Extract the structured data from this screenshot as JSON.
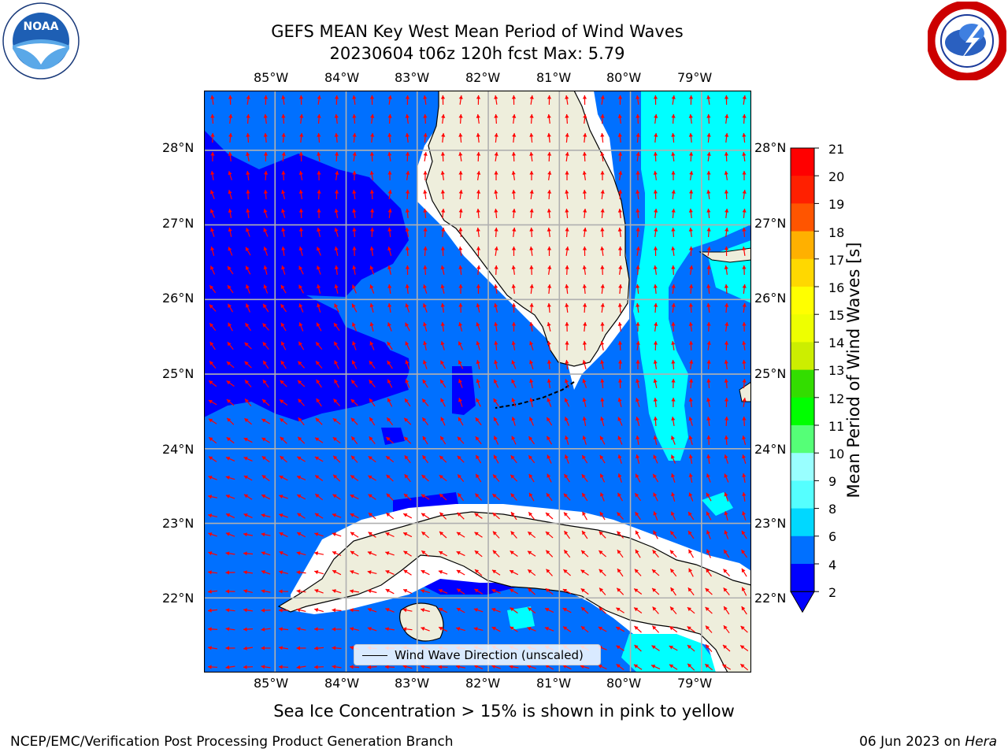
{
  "title": {
    "line1": "GEFS MEAN Key West Mean Period of Wind Waves",
    "line2": "20230604 t06z 120h fcst   Max: 5.79"
  },
  "axes": {
    "lon_labels": [
      "85°W",
      "84°W",
      "83°W",
      "82°W",
      "81°W",
      "80°W",
      "79°W"
    ],
    "lat_labels": [
      "28°N",
      "27°N",
      "26°N",
      "25°N",
      "24°N",
      "23°N",
      "22°N"
    ],
    "lon_range": [
      -86.0,
      -78.3
    ],
    "lat_range": [
      21.0,
      28.8
    ],
    "grid": true
  },
  "legend": {
    "entry": "Wind Wave Direction (unscaled)"
  },
  "colorbar": {
    "label": "Mean Period of Wind Waves [s]",
    "ticks": [
      "21",
      "20",
      "19",
      "18",
      "17",
      "16",
      "15",
      "14",
      "13",
      "12",
      "11",
      "10",
      "9",
      "8",
      "6",
      "4",
      "2"
    ],
    "colors": [
      "#0000ff",
      "#0070ff",
      "#00d8ff",
      "#00ffff",
      "#55ffff",
      "#99ffff",
      "#55ff77",
      "#00ff00",
      "#33dd00",
      "#88dd00",
      "#ccee00",
      "#eeff00",
      "#ffff00",
      "#ffd800",
      "#ffb000",
      "#ff8800",
      "#ff5500",
      "#ff2000",
      "#ff0000"
    ]
  },
  "chart_data": {
    "type": "heatmap",
    "title": "GEFS MEAN Key West Mean Period of Wind Waves",
    "subtitle": "20230604 t06z 120h fcst   Max: 5.79",
    "xlabel": "",
    "ylabel": "",
    "colorbar_label": "Mean Period of Wind Waves [s]",
    "max_value": 5.79,
    "value_levels": [
      2,
      4,
      6,
      8,
      9,
      10,
      11,
      12,
      13,
      14,
      15,
      16,
      17,
      18,
      19,
      20,
      21
    ],
    "xlim": [
      -86.0,
      -78.3
    ],
    "ylim": [
      21.0,
      28.8
    ],
    "legend": "Wind Wave Direction (unscaled)"
  },
  "notes": {
    "sea_ice": "Sea Ice Concentration > 15% is shown in pink to yellow"
  },
  "footer": {
    "left": "NCEP/EMC/Verification Post Processing Product Generation Branch",
    "right_date": "06 Jun 2023 on ",
    "right_host": "Hera"
  },
  "logos": {
    "noaa": "NOAA",
    "noaa_ring": "NATIONAL OCEANIC AND ATMOSPHERIC ADMINISTRATION · U.S. DEPARTMENT OF COMMERCE",
    "nws_ring": "NATIONAL WEATHER SERVICE"
  },
  "colors": {
    "land": "#eeeedc",
    "water_mid": "#0070ff",
    "water_low": "#0000ff",
    "water_high": "#00ffff",
    "arrow": "#ff0000",
    "grid": "#b0b0b0"
  }
}
